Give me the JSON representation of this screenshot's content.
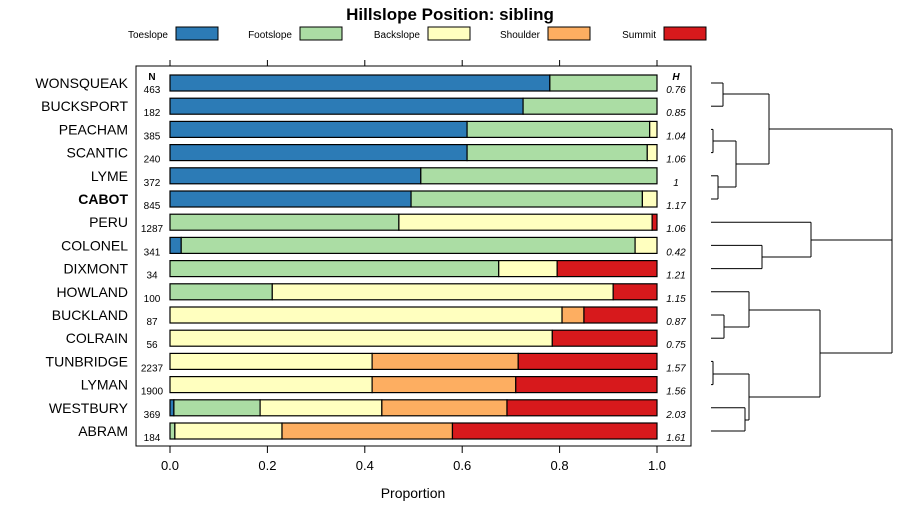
{
  "chart_data": {
    "type": "bar",
    "orientation": "horizontal",
    "stacked": true,
    "title": "Hillslope Position: sibling",
    "xlabel": "Proportion",
    "xlim": [
      0,
      1
    ],
    "xticks": [
      "0.0",
      "0.2",
      "0.4",
      "0.6",
      "0.8",
      "1.0"
    ],
    "legend_position": "top",
    "n_header": "N",
    "h_header": "H",
    "series": [
      {
        "name": "Toeslope",
        "color": "#2c7bb6"
      },
      {
        "name": "Footslope",
        "color": "#abdda4"
      },
      {
        "name": "Backslope",
        "color": "#ffffbf"
      },
      {
        "name": "Shoulder",
        "color": "#fdae61"
      },
      {
        "name": "Summit",
        "color": "#d7191c"
      }
    ],
    "rows": [
      {
        "name": "WONSQUEAK",
        "n": "463",
        "h": "0.76",
        "bold": false,
        "values": [
          0.78,
          0.22,
          0,
          0,
          0
        ]
      },
      {
        "name": "BUCKSPORT",
        "n": "182",
        "h": "0.85",
        "bold": false,
        "values": [
          0.725,
          0.275,
          0,
          0,
          0
        ]
      },
      {
        "name": "PEACHAM",
        "n": "385",
        "h": "1.04",
        "bold": false,
        "values": [
          0.61,
          0.375,
          0.015,
          0,
          0
        ]
      },
      {
        "name": "SCANTIC",
        "n": "240",
        "h": "1.06",
        "bold": false,
        "values": [
          0.61,
          0.37,
          0.02,
          0,
          0
        ]
      },
      {
        "name": "LYME",
        "n": "372",
        "h": "1",
        "bold": false,
        "values": [
          0.515,
          0.485,
          0,
          0,
          0
        ]
      },
      {
        "name": "CABOT",
        "n": "845",
        "h": "1.17",
        "bold": true,
        "values": [
          0.495,
          0.475,
          0.03,
          0,
          0
        ]
      },
      {
        "name": "PERU",
        "n": "1287",
        "h": "1.06",
        "bold": false,
        "values": [
          0,
          0.47,
          0.52,
          0,
          0.01
        ]
      },
      {
        "name": "COLONEL",
        "n": "341",
        "h": "0.42",
        "bold": false,
        "values": [
          0.023,
          0.932,
          0.045,
          0,
          0
        ]
      },
      {
        "name": "DIXMONT",
        "n": "34",
        "h": "1.21",
        "bold": false,
        "values": [
          0,
          0.675,
          0.12,
          0,
          0.205
        ]
      },
      {
        "name": "HOWLAND",
        "n": "100",
        "h": "1.15",
        "bold": false,
        "values": [
          0,
          0.21,
          0.7,
          0,
          0.09
        ]
      },
      {
        "name": "BUCKLAND",
        "n": "87",
        "h": "0.87",
        "bold": false,
        "values": [
          0,
          0,
          0.805,
          0.045,
          0.15
        ]
      },
      {
        "name": "COLRAIN",
        "n": "56",
        "h": "0.75",
        "bold": false,
        "values": [
          0,
          0,
          0.785,
          0,
          0.215
        ]
      },
      {
        "name": "TUNBRIDGE",
        "n": "2237",
        "h": "1.57",
        "bold": false,
        "values": [
          0,
          0,
          0.415,
          0.3,
          0.285
        ]
      },
      {
        "name": "LYMAN",
        "n": "1900",
        "h": "1.56",
        "bold": false,
        "values": [
          0,
          0,
          0.415,
          0.295,
          0.29
        ]
      },
      {
        "name": "WESTBURY",
        "n": "369",
        "h": "2.03",
        "bold": false,
        "values": [
          0.008,
          0.177,
          0.25,
          0.257,
          0.308
        ]
      },
      {
        "name": "ABRAM",
        "n": "184",
        "h": "1.61",
        "bold": false,
        "values": [
          0,
          0.01,
          0.22,
          0.35,
          0.42
        ]
      }
    ]
  }
}
